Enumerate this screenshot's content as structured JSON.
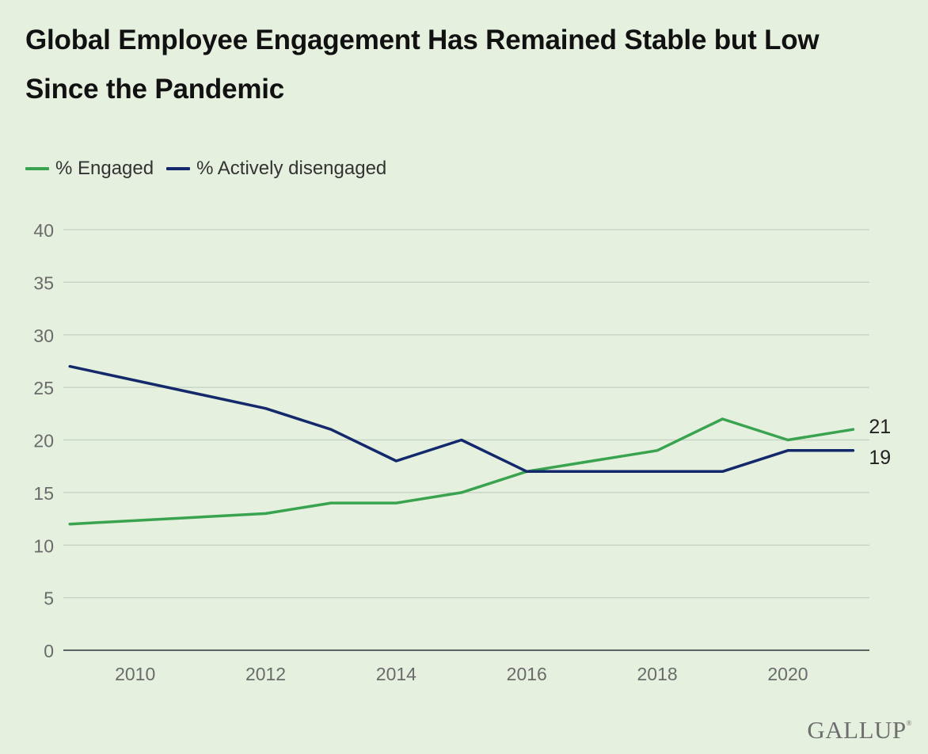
{
  "header": {
    "title": "Global Employee Engagement Has Remained Stable but Low Since the Pandemic"
  },
  "brand": {
    "logo_text": "GALLUP",
    "registered_mark": "®"
  },
  "colors": {
    "background": "#e5f0df",
    "engaged": "#3aa34f",
    "disengaged": "#13296b",
    "grid": "#c4d1c0",
    "axis_text": "#6b6b6b"
  },
  "chart_data": {
    "type": "line",
    "title": "Global Employee Engagement Has Remained Stable but Low Since the Pandemic",
    "xlabel": "",
    "ylabel": "",
    "ylim": [
      0,
      40
    ],
    "xlim": [
      2009,
      2021
    ],
    "yticks": [
      0,
      5,
      10,
      15,
      20,
      25,
      30,
      35,
      40
    ],
    "xticks": [
      2010,
      2012,
      2014,
      2016,
      2018,
      2020
    ],
    "grid": true,
    "legend_position": "top-left",
    "series": [
      {
        "name": "% Engaged",
        "color": "#3aa34f",
        "points": [
          {
            "x": 2009,
            "y": 12
          },
          {
            "x": 2012,
            "y": 13
          },
          {
            "x": 2013,
            "y": 14
          },
          {
            "x": 2014,
            "y": 14
          },
          {
            "x": 2015,
            "y": 15
          },
          {
            "x": 2016,
            "y": 17
          },
          {
            "x": 2018,
            "y": 19
          },
          {
            "x": 2019,
            "y": 22
          },
          {
            "x": 2020,
            "y": 20
          },
          {
            "x": 2021,
            "y": 21
          }
        ],
        "end_label": "21"
      },
      {
        "name": "% Actively disengaged",
        "color": "#13296b",
        "points": [
          {
            "x": 2009,
            "y": 27
          },
          {
            "x": 2012,
            "y": 23
          },
          {
            "x": 2013,
            "y": 21
          },
          {
            "x": 2014,
            "y": 18
          },
          {
            "x": 2015,
            "y": 20
          },
          {
            "x": 2016,
            "y": 17
          },
          {
            "x": 2018,
            "y": 17
          },
          {
            "x": 2019,
            "y": 17
          },
          {
            "x": 2020,
            "y": 19
          },
          {
            "x": 2021,
            "y": 19
          }
        ],
        "end_label": "19"
      }
    ]
  }
}
